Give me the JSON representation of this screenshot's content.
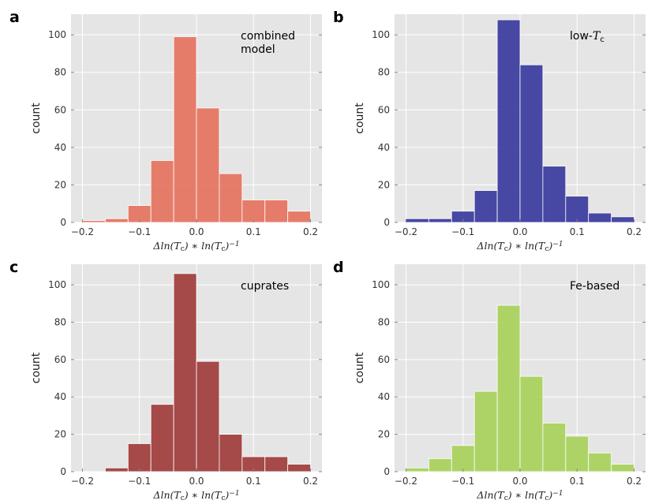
{
  "chart_data": [
    {
      "type": "bar",
      "panel": "a",
      "annotation": [
        "combined",
        "model"
      ],
      "color": "#E5735F",
      "bin_edges": [
        -0.2,
        -0.16,
        -0.12,
        -0.08,
        -0.04,
        0.0,
        0.04,
        0.08,
        0.12,
        0.16,
        0.2
      ],
      "values": [
        1,
        2,
        9,
        33,
        99,
        61,
        26,
        12,
        12,
        6
      ],
      "xlim": [
        -0.22,
        0.22
      ],
      "ylim": [
        0,
        111
      ],
      "xticks": [
        -0.2,
        -0.1,
        0.0,
        0.1,
        0.2
      ],
      "xtick_labels": [
        "−0.2",
        "−0.1",
        "0.0",
        "0.1",
        "0.2"
      ],
      "yticks": [
        0,
        20,
        40,
        60,
        80,
        100
      ],
      "ytick_labels": [
        "0",
        "20",
        "40",
        "60",
        "80",
        "100"
      ],
      "ylabel": "count",
      "xlabel": "Δln(T_c) * ln(T_c)^−1"
    },
    {
      "type": "bar",
      "panel": "b",
      "annotation": [
        "low-Tc"
      ],
      "color": "#3A3A9E",
      "bin_edges": [
        -0.2,
        -0.16,
        -0.12,
        -0.08,
        -0.04,
        0.0,
        0.04,
        0.08,
        0.12,
        0.16,
        0.2
      ],
      "values": [
        2,
        2,
        6,
        17,
        108,
        84,
        30,
        14,
        5,
        3
      ],
      "xlim": [
        -0.22,
        0.22
      ],
      "ylim": [
        0,
        111
      ],
      "xticks": [
        -0.2,
        -0.1,
        0.0,
        0.1,
        0.2
      ],
      "xtick_labels": [
        "−0.2",
        "−0.1",
        "0.0",
        "0.1",
        "0.2"
      ],
      "yticks": [
        0,
        20,
        40,
        60,
        80,
        100
      ],
      "ytick_labels": [
        "0",
        "20",
        "40",
        "60",
        "80",
        "100"
      ],
      "ylabel": "count",
      "xlabel": "Δln(T_c) * ln(T_c)^−1"
    },
    {
      "type": "bar",
      "panel": "c",
      "annotation": [
        "cuprates"
      ],
      "color": "#A03C3C",
      "bin_edges": [
        -0.16,
        -0.12,
        -0.08,
        -0.04,
        0.0,
        0.04,
        0.08,
        0.12,
        0.16,
        0.2
      ],
      "values": [
        2,
        15,
        36,
        106,
        59,
        20,
        8,
        8,
        4
      ],
      "xlim": [
        -0.22,
        0.22
      ],
      "ylim": [
        0,
        111
      ],
      "xticks": [
        -0.2,
        -0.1,
        0.0,
        0.1,
        0.2
      ],
      "xtick_labels": [
        "−0.2",
        "−0.1",
        "0.0",
        "0.1",
        "0.2"
      ],
      "yticks": [
        0,
        20,
        40,
        60,
        80,
        100
      ],
      "ytick_labels": [
        "0",
        "20",
        "40",
        "60",
        "80",
        "100"
      ],
      "ylabel": "count",
      "xlabel": "Δln(T_c) * ln(T_c)^−1"
    },
    {
      "type": "bar",
      "panel": "d",
      "annotation": [
        "Fe-based"
      ],
      "color": "#A8D15C",
      "bin_edges": [
        -0.2,
        -0.16,
        -0.12,
        -0.08,
        -0.04,
        0.0,
        0.04,
        0.08,
        0.12,
        0.16,
        0.2
      ],
      "values": [
        2,
        7,
        14,
        43,
        89,
        51,
        26,
        19,
        10,
        4
      ],
      "xlim": [
        -0.22,
        0.22
      ],
      "ylim": [
        0,
        111
      ],
      "xticks": [
        -0.2,
        -0.1,
        0.0,
        0.1,
        0.2
      ],
      "xtick_labels": [
        "−0.2",
        "−0.1",
        "0.0",
        "0.1",
        "0.2"
      ],
      "yticks": [
        0,
        20,
        40,
        60,
        80,
        100
      ],
      "ytick_labels": [
        "0",
        "20",
        "40",
        "60",
        "80",
        "100"
      ],
      "ylabel": "count",
      "xlabel": "Δln(T_c) * ln(T_c)^−1"
    }
  ]
}
